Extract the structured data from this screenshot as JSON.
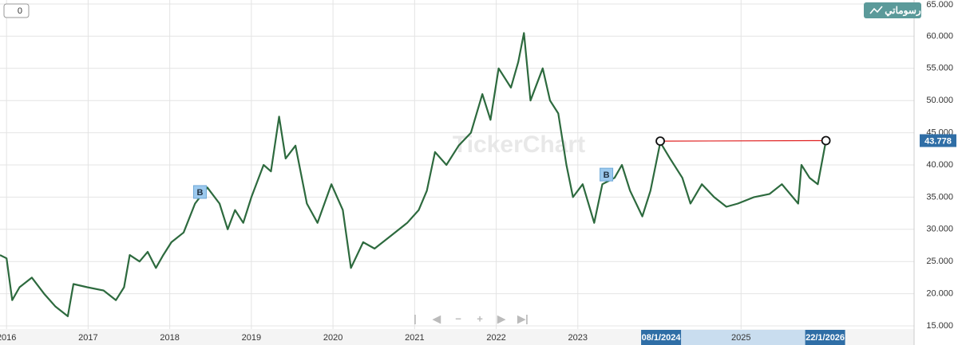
{
  "chart_data": {
    "type": "line",
    "x": [
      2015.92,
      2016.0,
      2016.07,
      2016.16,
      2016.31,
      2016.46,
      2016.6,
      2016.75,
      2016.82,
      2016.99,
      2017.19,
      2017.34,
      2017.44,
      2017.51,
      2017.63,
      2017.73,
      2017.83,
      2017.92,
      2018.02,
      2018.17,
      2018.31,
      2018.46,
      2018.61,
      2018.71,
      2018.8,
      2018.9,
      2019.0,
      2019.15,
      2019.24,
      2019.34,
      2019.42,
      2019.54,
      2019.68,
      2019.81,
      2019.98,
      2020.12,
      2020.22,
      2020.37,
      2020.51,
      2020.71,
      2020.91,
      2021.05,
      2021.15,
      2021.25,
      2021.39,
      2021.54,
      2021.69,
      2021.83,
      2021.93,
      2022.03,
      2022.18,
      2022.27,
      2022.34,
      2022.42,
      2022.57,
      2022.66,
      2022.76,
      2022.86,
      2022.94,
      2023.06,
      2023.2,
      2023.3,
      2023.45,
      2023.54,
      2023.64,
      2023.79,
      2023.89,
      2024.01,
      2024.13,
      2024.28,
      2024.38,
      2024.52,
      2024.67,
      2024.82,
      2024.96,
      2025.16,
      2025.35,
      2025.5,
      2025.7,
      2025.74,
      2025.84,
      2025.94,
      2026.04
    ],
    "values": [
      26,
      25.5,
      19,
      21,
      22.5,
      20,
      18,
      16.5,
      21.5,
      21,
      20.5,
      19,
      21,
      26,
      25,
      26.5,
      24,
      26,
      28,
      29.5,
      34,
      36.5,
      34,
      30,
      33,
      31,
      35,
      40,
      39,
      47.5,
      41,
      43,
      34,
      31,
      37,
      33,
      24,
      28,
      27,
      29,
      31,
      33,
      36,
      42,
      40,
      43,
      45,
      51,
      47,
      55,
      52,
      56,
      60.5,
      50,
      55,
      50,
      48,
      40,
      35,
      37,
      31,
      37,
      38,
      40,
      36,
      32,
      36,
      43.5,
      41,
      38,
      34,
      37,
      35,
      33.5,
      34,
      35,
      35.5,
      37,
      34,
      40,
      38,
      37,
      43.778
    ],
    "color": "#2d6a3e",
    "xlim": [
      2015.92,
      2027.12
    ],
    "xticks": [
      2016,
      2017,
      2018,
      2019,
      2020,
      2021,
      2022,
      2023,
      2025
    ],
    "ylim": [
      15,
      65
    ],
    "yticks": [
      {
        "value": 15,
        "label": "15.000"
      },
      {
        "value": 20,
        "label": "20.000"
      },
      {
        "value": 25,
        "label": "25.000"
      },
      {
        "value": 30,
        "label": "30.000"
      },
      {
        "value": 35,
        "label": "35.000"
      },
      {
        "value": 40,
        "label": "40.000"
      },
      {
        "value": 45,
        "label": "45.000"
      },
      {
        "value": 50,
        "label": "50.000"
      },
      {
        "value": 55,
        "label": "55.000"
      },
      {
        "value": 60,
        "label": "60.000"
      },
      {
        "value": 65,
        "label": "65.000"
      }
    ],
    "grid": true,
    "last_price": 43.778,
    "range_markers": [
      {
        "value": 2024.01,
        "label": "08/1/2024"
      },
      {
        "value": 2026.04,
        "label": "22/1/2026"
      }
    ],
    "trend_line": {
      "x": [
        2024.01,
        2026.04
      ],
      "values": [
        43.7,
        43.778
      ],
      "color": "#e02020"
    },
    "signals": [
      {
        "x": 2018.37,
        "value": 35.8,
        "label": "B"
      },
      {
        "x": 2023.35,
        "value": 38.5,
        "label": "B"
      }
    ]
  },
  "ui": {
    "counter": "0",
    "button": "رسوماتي",
    "watermark": "TickerChart"
  }
}
